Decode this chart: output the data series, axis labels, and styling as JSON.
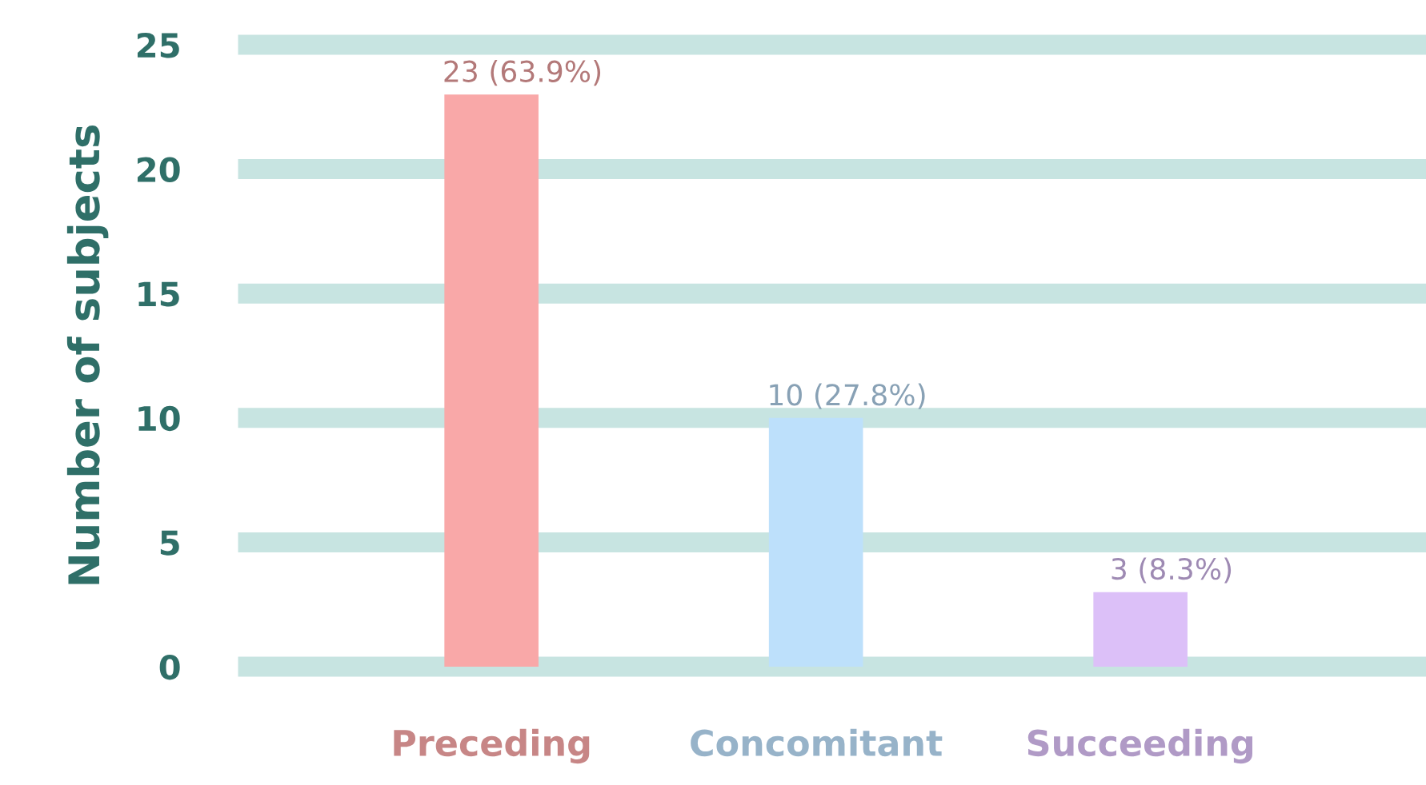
{
  "chart_data": {
    "type": "bar",
    "ylabel": "Number of subjects",
    "categories": [
      "Preceding",
      "Concomitant",
      "Succeeding"
    ],
    "values": [
      23,
      10,
      3
    ],
    "colors": [
      "#f9a8a8",
      "#bde0fb",
      "#dcc0f8"
    ],
    "value_labels": [
      "23 (63.9%)",
      "10 (27.8%)",
      "3 (8.3%)"
    ],
    "ylim": [
      0,
      25
    ],
    "yticks": [
      0,
      5,
      10,
      15,
      20,
      25
    ],
    "grid": "y"
  }
}
